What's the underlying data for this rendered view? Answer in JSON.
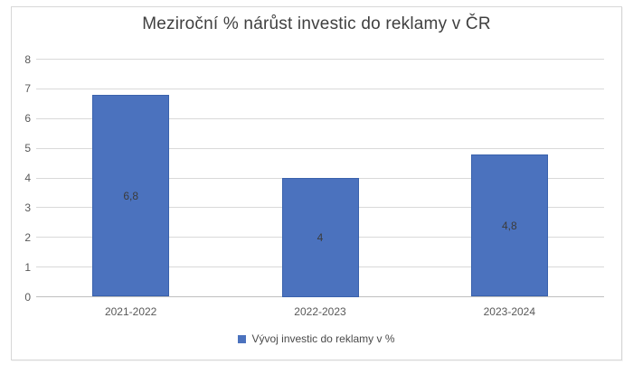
{
  "chart_data": {
    "type": "bar",
    "title": "Meziroční % nárůst investic do reklamy v ČR",
    "categories": [
      "2021-2022",
      "2022-2023",
      "2023-2024"
    ],
    "values": [
      6.8,
      4,
      4.8
    ],
    "value_labels": [
      "6,8",
      "4",
      "4,8"
    ],
    "series_name": "Vývoj investic do reklamy v %",
    "ylim": [
      0,
      8
    ],
    "ytick_step": 1,
    "ytick_labels": [
      "0",
      "1",
      "2",
      "3",
      "4",
      "5",
      "6",
      "7",
      "8"
    ],
    "grid": true,
    "legend_position": "bottom",
    "data_label_position": "inside-center",
    "colors": {
      "bar_fill": "#4b72be",
      "bar_border": "#3a62ac",
      "gridline": "#d9d9d9",
      "axis_line": "#bfbfbf",
      "title_text": "#404040",
      "tick_text": "#595959",
      "data_label_text": "#3b3b3b",
      "frame_border": "#d7d7d7"
    }
  }
}
